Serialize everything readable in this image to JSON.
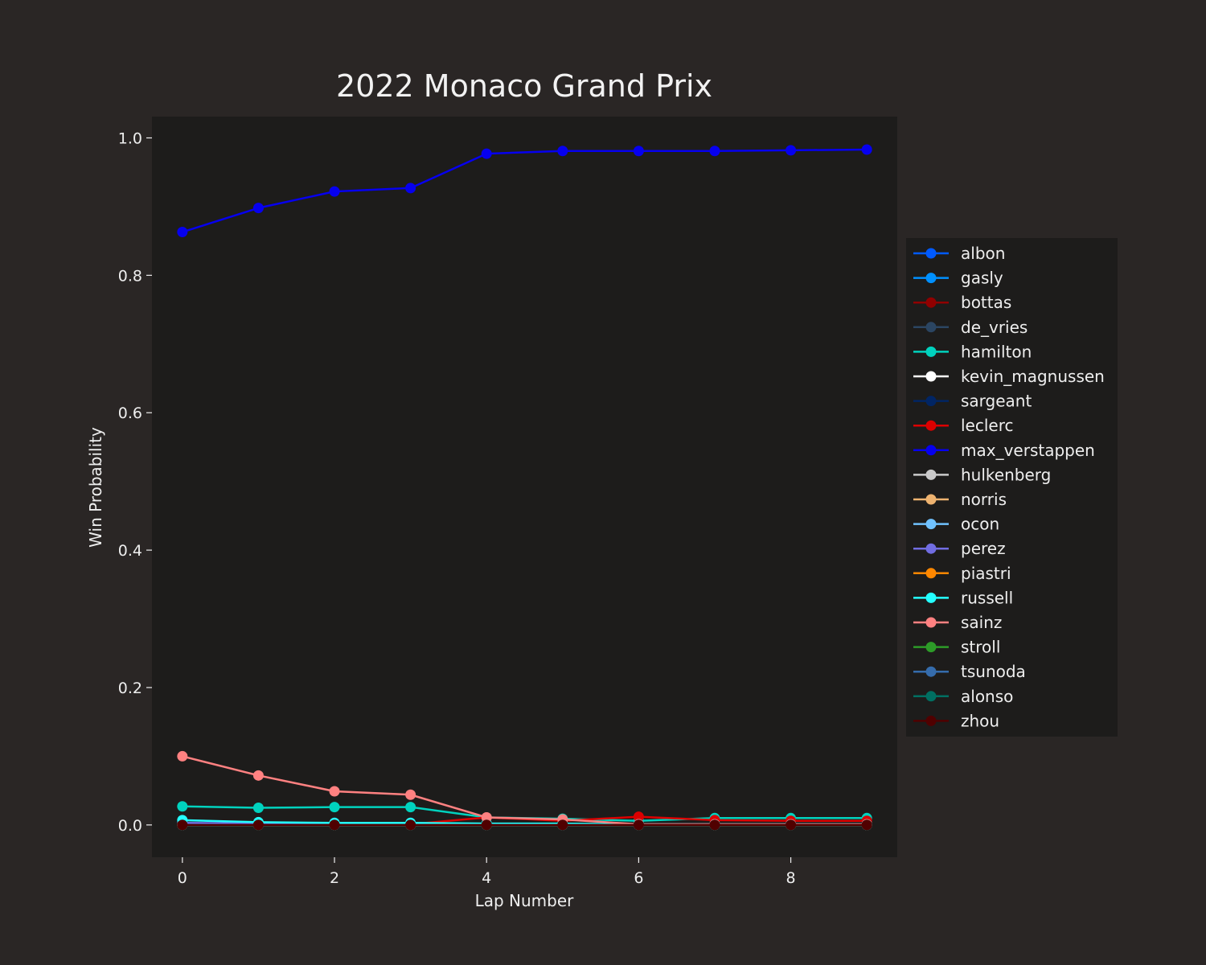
{
  "chart_data": {
    "type": "line",
    "title": "2022 Monaco Grand Prix",
    "xlabel": "Lap Number",
    "ylabel": "Win Probability",
    "xlim": [
      -0.4,
      9.4
    ],
    "ylim": [
      -0.047,
      1.031
    ],
    "xticks": [
      0,
      2,
      4,
      6,
      8
    ],
    "xtick_labels": [
      "0",
      "2",
      "4",
      "6",
      "8"
    ],
    "yticks": [
      0.0,
      0.2,
      0.4,
      0.6,
      0.8,
      1.0
    ],
    "ytick_labels": [
      "0.0",
      "0.2",
      "0.4",
      "0.6",
      "0.8",
      "1.0"
    ],
    "grid": false,
    "legend_position": "right",
    "x": [
      0,
      1,
      2,
      3,
      4,
      5,
      6,
      7,
      8,
      9
    ],
    "series": [
      {
        "name": "albon",
        "color": "#005aff",
        "values": [
          0,
          0,
          0,
          0,
          0,
          0,
          0,
          0,
          0,
          0
        ]
      },
      {
        "name": "gasly",
        "color": "#0090ff",
        "values": [
          0,
          0,
          0,
          0,
          0,
          0,
          0,
          0,
          0,
          0
        ]
      },
      {
        "name": "bottas",
        "color": "#900000",
        "values": [
          0,
          0,
          0,
          0,
          0,
          0,
          0,
          0,
          0,
          0
        ]
      },
      {
        "name": "de_vries",
        "color": "#2b4562",
        "values": [
          0,
          0,
          0,
          0,
          0,
          0,
          0,
          0,
          0,
          0
        ]
      },
      {
        "name": "hamilton",
        "color": "#00d2be",
        "values": [
          0.027,
          0.025,
          0.026,
          0.026,
          0.011,
          0.009,
          0.006,
          0.01,
          0.01,
          0.01
        ]
      },
      {
        "name": "kevin_magnussen",
        "color": "#ffffff",
        "values": [
          0,
          0,
          0,
          0,
          0,
          0,
          0,
          0,
          0,
          0
        ]
      },
      {
        "name": "sargeant",
        "color": "#012564",
        "values": [
          0,
          0,
          0,
          0,
          0,
          0,
          0,
          0,
          0,
          0
        ]
      },
      {
        "name": "leclerc",
        "color": "#dc0000",
        "values": [
          0.002,
          0.001,
          0.001,
          0.001,
          0.011,
          0.006,
          0.012,
          0.007,
          0.006,
          0.006
        ]
      },
      {
        "name": "max_verstappen",
        "color": "#0600ef",
        "values": [
          0.863,
          0.898,
          0.922,
          0.927,
          0.977,
          0.981,
          0.981,
          0.981,
          0.982,
          0.983
        ]
      },
      {
        "name": "hulkenberg",
        "color": "#cacaca",
        "values": [
          0,
          0,
          0,
          0,
          0,
          0,
          0,
          0,
          0,
          0
        ]
      },
      {
        "name": "norris",
        "color": "#eeb370",
        "values": [
          0,
          0,
          0,
          0,
          0,
          0,
          0,
          0,
          0,
          0
        ]
      },
      {
        "name": "ocon",
        "color": "#70c2ff",
        "values": [
          0,
          0,
          0,
          0,
          0,
          0,
          0,
          0,
          0,
          0
        ]
      },
      {
        "name": "perez",
        "color": "#716de2",
        "values": [
          0.003,
          0.002,
          0.001,
          0.001,
          0.001,
          0.001,
          0.001,
          0.001,
          0.001,
          0.001
        ]
      },
      {
        "name": "piastri",
        "color": "#ff8700",
        "values": [
          0,
          0,
          0,
          0,
          0,
          0,
          0,
          0,
          0,
          0
        ]
      },
      {
        "name": "russell",
        "color": "#24ffff",
        "values": [
          0.007,
          0.004,
          0.003,
          0.003,
          0.002,
          0.002,
          0.001,
          0.001,
          0.001,
          0.001
        ]
      },
      {
        "name": "sainz",
        "color": "#ff8181",
        "values": [
          0.1,
          0.072,
          0.049,
          0.044,
          0.011,
          0.008,
          0.001,
          0.001,
          0.001,
          0.001
        ]
      },
      {
        "name": "stroll",
        "color": "#2d9b28",
        "values": [
          0,
          0,
          0,
          0,
          0,
          0,
          0,
          0,
          0,
          0
        ]
      },
      {
        "name": "tsunoda",
        "color": "#356cac",
        "values": [
          0,
          0,
          0,
          0,
          0,
          0,
          0,
          0,
          0,
          0
        ]
      },
      {
        "name": "alonso",
        "color": "#006f62",
        "values": [
          0,
          0,
          0,
          0,
          0,
          0,
          0,
          0,
          0,
          0
        ]
      },
      {
        "name": "zhou",
        "color": "#500000",
        "values": [
          0,
          0,
          0,
          0,
          0,
          0,
          0,
          0,
          0,
          0
        ]
      }
    ]
  }
}
